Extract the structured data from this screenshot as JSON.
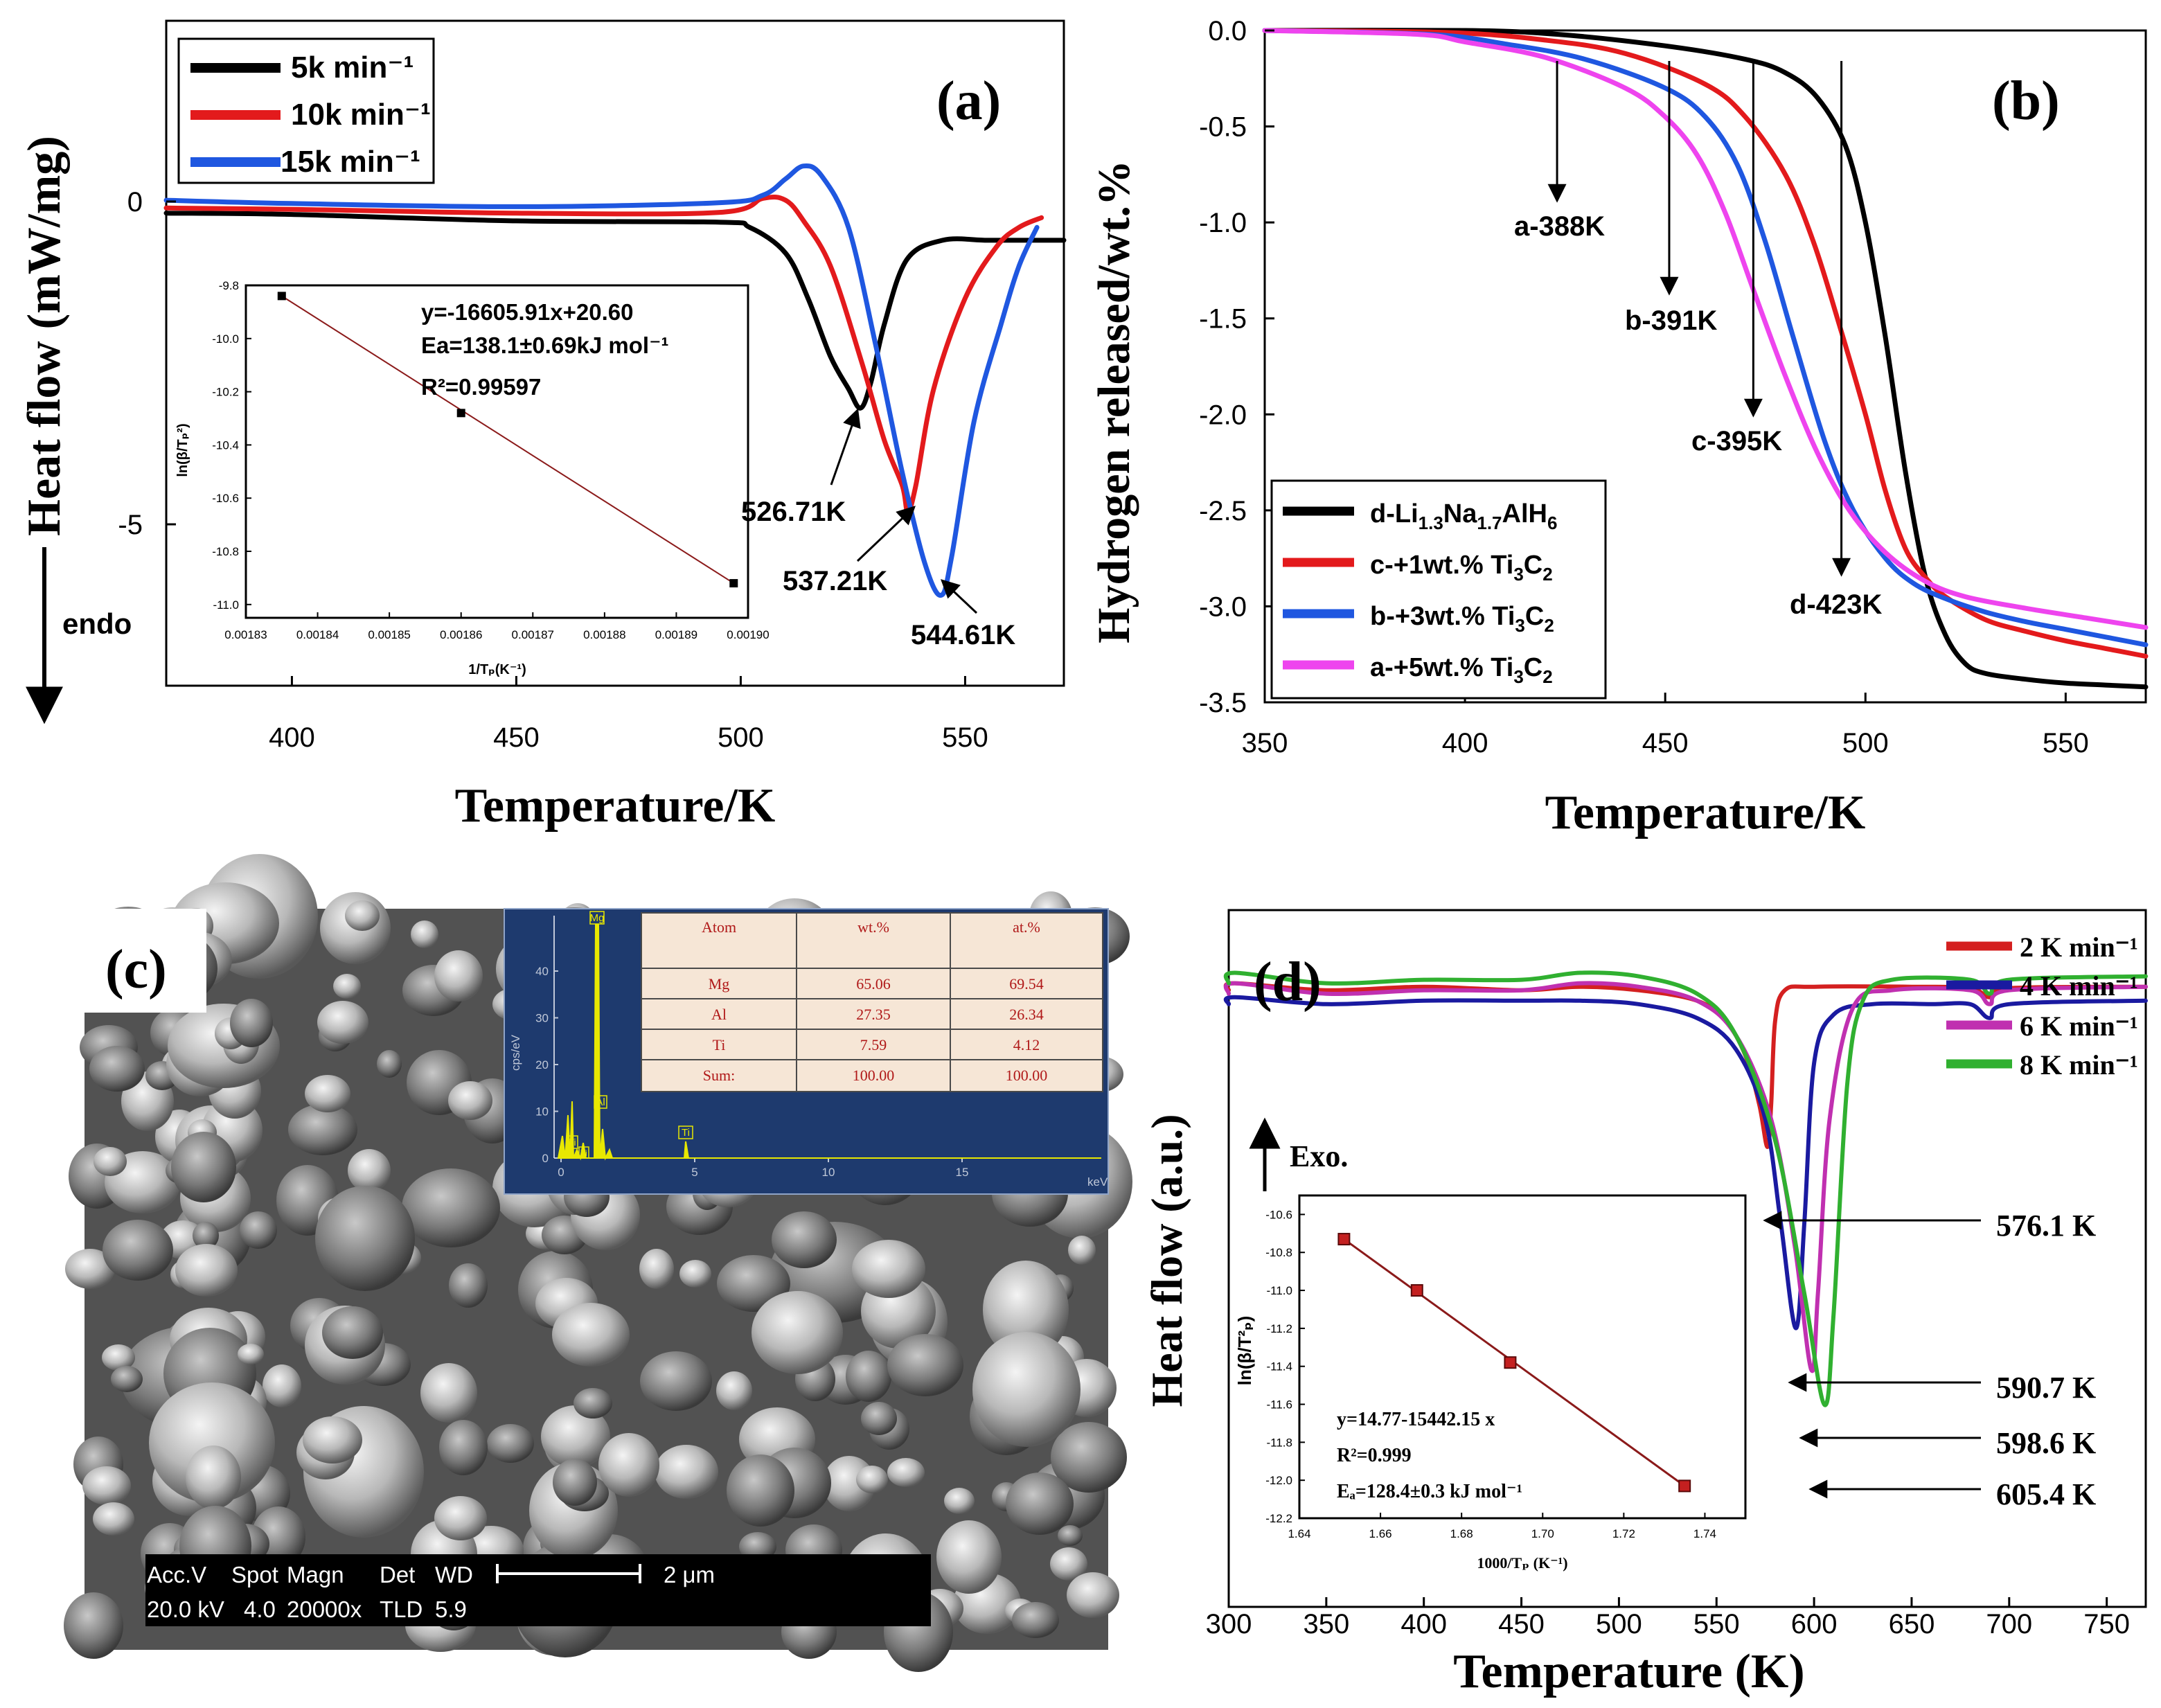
{
  "chart_data": [
    {
      "panel": "a",
      "type": "line",
      "label": "(a)",
      "xlabel": "Temperature/K",
      "ylabel": "Heat flow (mW/mg)",
      "direction_note": "endo",
      "xlim": [
        372,
        572
      ],
      "ylim": [
        -7.5,
        2.8
      ],
      "xticks": [
        400,
        450,
        500,
        550
      ],
      "yticks": [
        0,
        -5
      ],
      "legend": [
        "5k min⁻¹",
        "10k min⁻¹",
        "15k min⁻¹"
      ],
      "series": [
        {
          "name": "5k min⁻¹",
          "color": "#000000",
          "x": [
            372,
            400,
            450,
            495,
            502,
            510,
            515,
            520,
            524,
            526.71,
            529,
            532,
            537,
            545,
            555,
            565,
            572
          ],
          "y": [
            -0.18,
            -0.2,
            -0.3,
            -0.32,
            -0.4,
            -0.8,
            -1.5,
            -2.4,
            -2.9,
            -3.2,
            -2.8,
            -1.9,
            -0.9,
            -0.6,
            -0.6,
            -0.6,
            -0.6
          ]
        },
        {
          "name": "10k min⁻¹",
          "color": "#e31a1c",
          "x": [
            372,
            400,
            450,
            495,
            505,
            510,
            514,
            520,
            527,
            532,
            536,
            537.21,
            539,
            543,
            550,
            557,
            562,
            567
          ],
          "y": [
            -0.1,
            -0.12,
            -0.18,
            -0.17,
            0.05,
            0.02,
            -0.3,
            -1.0,
            -2.5,
            -3.7,
            -4.4,
            -4.8,
            -4.4,
            -2.9,
            -1.5,
            -0.7,
            -0.4,
            -0.25
          ]
        },
        {
          "name": "15k min⁻¹",
          "color": "#1f57e0",
          "x": [
            372,
            400,
            450,
            495,
            505,
            510,
            514,
            518,
            524,
            530,
            536,
            541,
            544.61,
            547,
            552,
            558,
            562,
            566
          ],
          "y": [
            0.02,
            -0.03,
            -0.08,
            -0.02,
            0.1,
            0.35,
            0.55,
            0.4,
            -0.4,
            -2.2,
            -4.2,
            -5.6,
            -6.1,
            -5.5,
            -3.4,
            -1.9,
            -1.0,
            -0.4
          ]
        }
      ],
      "annotations": [
        "526.71K",
        "537.21K",
        "544.61K"
      ],
      "annotation_x": [
        526.71,
        537.21,
        544.61
      ],
      "inset": {
        "type": "scatter",
        "xlabel": "1/Tₚ(K⁻¹)",
        "ylabel": "ln(β/Tₚ²)",
        "xlim": [
          0.00183,
          0.0019
        ],
        "ylim": [
          -11.05,
          -9.8
        ],
        "xticks": [
          "0.00183",
          "0.00184",
          "0.00185",
          "0.00186",
          "0.00187",
          "0.00188",
          "0.00189",
          "0.00190"
        ],
        "yticks": [
          "-9.8",
          "-10.0",
          "-10.2",
          "-10.4",
          "-10.6",
          "-10.8",
          "-11.0"
        ],
        "x": [
          0.001835,
          0.00186,
          0.001898
        ],
        "y": [
          -9.84,
          -10.28,
          -10.92
        ],
        "fit_text": [
          "y=-16605.91x+20.60",
          "Ea=138.1±0.69kJ mol⁻¹",
          "R²=0.99597"
        ]
      }
    },
    {
      "panel": "b",
      "type": "line",
      "label": "(b)",
      "xlabel": "Temperature/K",
      "ylabel": "Hydrogen released/wt.%",
      "xlim": [
        350,
        570
      ],
      "ylim": [
        -3.5,
        0.0
      ],
      "xticks": [
        350,
        400,
        450,
        500,
        550
      ],
      "yticks": [
        "0.0",
        "-0.5",
        "-1.0",
        "-1.5",
        "-2.0",
        "-2.5",
        "-3.0",
        "-3.5"
      ],
      "legend": [
        "d-Li1.3Na1.7AlH6",
        "c-+1wt.% Ti3C2",
        "b-+3wt.% Ti3C2",
        "a-+5wt.% Ti3C2"
      ],
      "series": [
        {
          "name": "d",
          "color": "#000000",
          "x": [
            350,
            400,
            423,
            450,
            470,
            480,
            488,
            495,
            500,
            505,
            510,
            515,
            520,
            525,
            530,
            540,
            550,
            560,
            570
          ],
          "y": [
            0,
            0,
            -0.02,
            -0.08,
            -0.15,
            -0.22,
            -0.35,
            -0.6,
            -1.0,
            -1.6,
            -2.3,
            -2.85,
            -3.15,
            -3.3,
            -3.35,
            -3.38,
            -3.4,
            -3.41,
            -3.42
          ]
        },
        {
          "name": "c",
          "color": "#e31a1c",
          "x": [
            350,
            395,
            420,
            440,
            460,
            470,
            480,
            487,
            493,
            500,
            505,
            510,
            515,
            520,
            530,
            540,
            550,
            560,
            570
          ],
          "y": [
            0,
            -0.01,
            -0.05,
            -0.12,
            -0.28,
            -0.45,
            -0.75,
            -1.1,
            -1.5,
            -2.0,
            -2.4,
            -2.7,
            -2.85,
            -2.95,
            -3.07,
            -3.13,
            -3.18,
            -3.22,
            -3.26
          ]
        },
        {
          "name": "b",
          "color": "#1f57e0",
          "x": [
            350,
            391,
            410,
            430,
            450,
            460,
            468,
            475,
            482,
            490,
            497,
            505,
            512,
            520,
            530,
            540,
            550,
            560,
            570
          ],
          "y": [
            0,
            -0.02,
            -0.07,
            -0.15,
            -0.3,
            -0.45,
            -0.7,
            -1.1,
            -1.6,
            -2.15,
            -2.5,
            -2.75,
            -2.88,
            -2.96,
            -3.03,
            -3.08,
            -3.12,
            -3.16,
            -3.2
          ]
        },
        {
          "name": "a",
          "color": "#ee44ee",
          "x": [
            350,
            388,
            400,
            420,
            440,
            450,
            458,
            465,
            472,
            480,
            488,
            496,
            505,
            515,
            525,
            540,
            555,
            570
          ],
          "y": [
            0,
            -0.02,
            -0.06,
            -0.14,
            -0.3,
            -0.45,
            -0.65,
            -0.95,
            -1.35,
            -1.8,
            -2.2,
            -2.5,
            -2.72,
            -2.87,
            -2.95,
            -3.01,
            -3.06,
            -3.11
          ]
        }
      ],
      "annotations": [
        "a-388K",
        "b-391K",
        "c-395K",
        "d-423K"
      ],
      "annotation_x": [
        423,
        451,
        472,
        494
      ]
    },
    {
      "panel": "d",
      "type": "line",
      "label": "(d)",
      "xlabel": "Temperature (K)",
      "ylabel": "Heat flow (a.u.)",
      "direction_note": "Exo.",
      "xlim": [
        300,
        770
      ],
      "ylim": [
        0,
        100
      ],
      "xticks": [
        300,
        350,
        400,
        450,
        500,
        550,
        600,
        650,
        700,
        750
      ],
      "legend": [
        "2 K min⁻¹",
        "4 K min⁻¹",
        "6 K min⁻¹",
        "8 K min⁻¹"
      ],
      "series": [
        {
          "name": "2 K min⁻¹",
          "color": "#d42020",
          "x": [
            300,
            303,
            350,
            400,
            450,
            480,
            510,
            540,
            555,
            565,
            572,
            576.1,
            578,
            580,
            585,
            600,
            650,
            680,
            690,
            700,
            770
          ],
          "y": [
            88.5,
            89.5,
            88.5,
            89,
            88.5,
            89,
            88.5,
            87,
            84,
            79,
            72,
            66,
            72,
            84,
            88.5,
            89,
            89,
            88.8,
            87.5,
            88.8,
            89
          ]
        },
        {
          "name": "4 K min⁻¹",
          "color": "#1a1aa0",
          "x": [
            300,
            303,
            350,
            400,
            450,
            480,
            510,
            540,
            560,
            575,
            583,
            590.7,
            595,
            600,
            610,
            630,
            660,
            680,
            690,
            700,
            770
          ],
          "y": [
            86.5,
            87.5,
            86.5,
            87,
            87,
            87,
            86.5,
            84.5,
            80,
            70,
            55,
            40,
            55,
            78,
            85,
            86.5,
            86.5,
            86.5,
            84.5,
            86.5,
            87
          ]
        },
        {
          "name": "6 K min⁻¹",
          "color": "#c030b0",
          "x": [
            300,
            303,
            350,
            400,
            450,
            480,
            510,
            540,
            560,
            578,
            590,
            598.6,
            602,
            608,
            620,
            640,
            680,
            690,
            700,
            770
          ],
          "y": [
            88,
            89.5,
            88,
            88.5,
            88.5,
            89.5,
            89,
            87,
            82,
            70,
            52,
            34,
            45,
            70,
            86,
            88.5,
            88.5,
            86.5,
            88.5,
            89
          ]
        },
        {
          "name": "8 K min⁻¹",
          "color": "#30b030",
          "x": [
            300,
            303,
            350,
            400,
            450,
            480,
            510,
            540,
            560,
            580,
            595,
            605.4,
            610,
            617,
            625,
            640,
            680,
            690,
            700,
            770
          ],
          "y": [
            89.5,
            91,
            89.5,
            90,
            90,
            91,
            90.5,
            88,
            82,
            67,
            45,
            29,
            42,
            75,
            87,
            90,
            90,
            88,
            90,
            90.5
          ]
        }
      ],
      "annotations": [
        "576.1 K",
        "590.7 K",
        "598.6 K",
        "605.4 K"
      ],
      "inset": {
        "type": "scatter",
        "xlabel": "1000/Tₚ (K⁻¹)",
        "ylabel": "ln(β/T²ₚ)",
        "xlim": [
          1.64,
          1.75
        ],
        "ylim": [
          -12.2,
          -10.5
        ],
        "xticks": [
          "1.64",
          "1.66",
          "1.68",
          "1.70",
          "1.72",
          "1.74"
        ],
        "yticks": [
          "-10.6",
          "-10.8",
          "-11.0",
          "-11.2",
          "-11.4",
          "-11.6",
          "-11.8",
          "-12.0",
          "-12.2"
        ],
        "x": [
          1.651,
          1.669,
          1.692,
          1.735
        ],
        "y": [
          -10.73,
          -11.0,
          -11.38,
          -12.03
        ],
        "fit_text": [
          "y=14.77-15442.15 x",
          "R²=0.999",
          "Eₐ=128.4±0.3 kJ mol⁻¹"
        ]
      }
    }
  ],
  "panel_c": {
    "label": "(c)",
    "edx": {
      "y_label": "cps/eV",
      "x_unit": "keV",
      "yticks": [
        "40",
        "30",
        "20",
        "10",
        "0"
      ],
      "xticks": [
        "0",
        "5",
        "10",
        "15"
      ],
      "peak_labels": [
        "Mg",
        "Al",
        "Ti",
        "Ti",
        "Ti"
      ],
      "table_headers": [
        "Atom",
        "wt.%",
        "at.%"
      ],
      "table_rows": [
        [
          "Mg",
          "65.06",
          "69.54"
        ],
        [
          "Al",
          "27.35",
          "26.34"
        ],
        [
          "Ti",
          "7.59",
          "4.12"
        ],
        [
          "Sum:",
          "100.00",
          "100.00"
        ]
      ]
    },
    "sem_bar": {
      "row1": [
        "Acc.V",
        "Spot",
        "Magn",
        "Det",
        "WD"
      ],
      "row2": [
        "20.0 kV",
        "4.0",
        "20000x",
        "TLD",
        "5.9"
      ],
      "scale": "2 μm"
    }
  },
  "colors": {
    "black": "#000000",
    "red": "#e31a1c",
    "blue": "#1f57e0",
    "magenta": "#ee44ee",
    "navy": "#1a1aa0",
    "green": "#30b030",
    "edx_bg": "#1e3a6e",
    "edx_peak": "#e8e800",
    "table_bg": "#f6e6d6",
    "table_text": "#b01818"
  }
}
